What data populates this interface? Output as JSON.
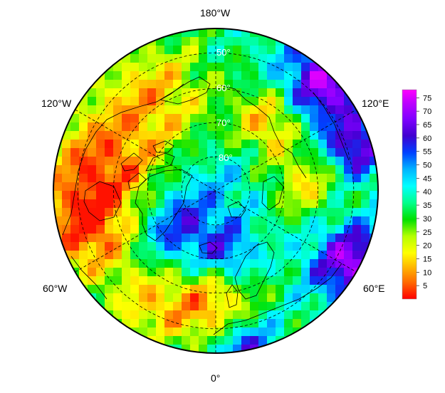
{
  "map": {
    "projection": "north-polar-stereographic",
    "center": "North Pole",
    "longitude_labels": [
      "180°W",
      "120°E",
      "60°E",
      "0°",
      "60°W",
      "120°W"
    ],
    "latitude_labels": [
      "50°",
      "60°",
      "70°",
      "80°"
    ],
    "gridlines": "dashed",
    "coastlines": true,
    "colorbar": {
      "ticks": [
        "75",
        "70",
        "65",
        "60",
        "55",
        "50",
        "45",
        "40",
        "35",
        "30",
        "25",
        "20",
        "15",
        "10",
        "5"
      ],
      "min": 0,
      "max": 78,
      "colormap": [
        "#ff0000",
        "#ff6a00",
        "#ffb400",
        "#ffff00",
        "#b4ff00",
        "#00e000",
        "#00ff8c",
        "#00ffff",
        "#00b4ff",
        "#0040ff",
        "#4000d0",
        "#8000ff",
        "#c000ff",
        "#ff00ff"
      ]
    }
  }
}
